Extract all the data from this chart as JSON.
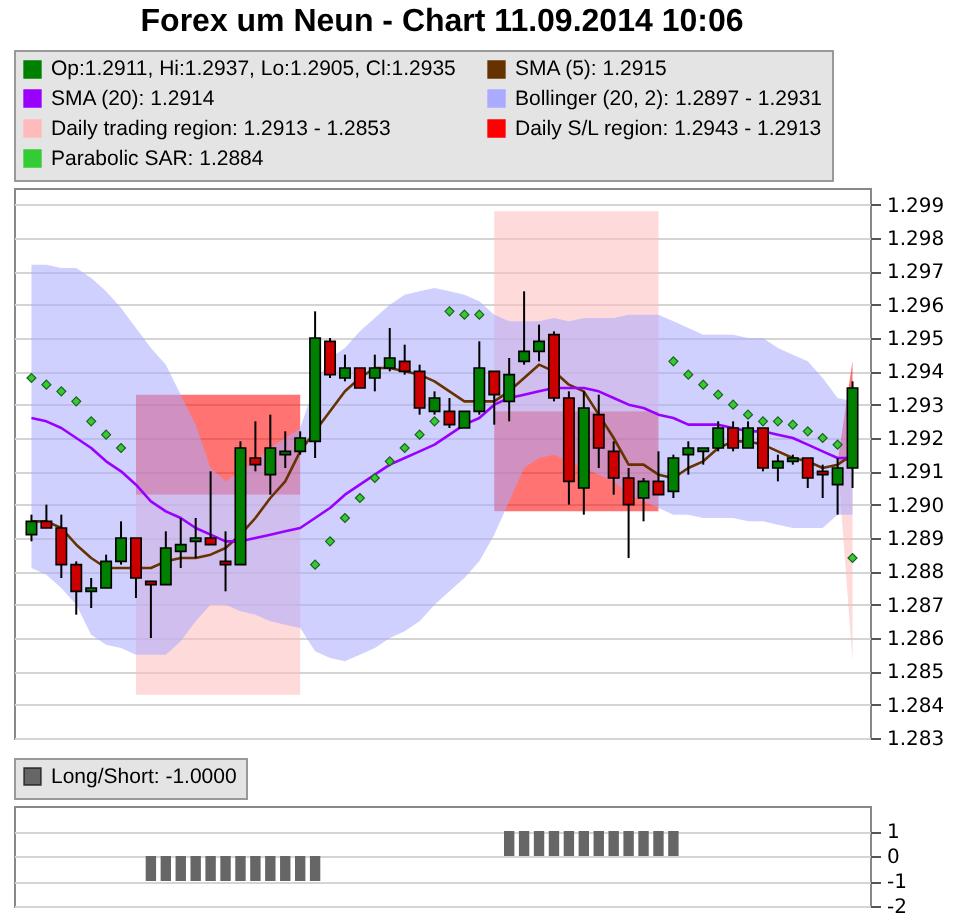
{
  "chart_data": [
    {
      "type": "candlestick",
      "title": "Forex um Neun - Chart 11.09.2014 10:06",
      "categories": [
        null,
        null,
        null,
        null,
        null,
        null,
        null,
        null,
        null,
        null,
        null,
        null,
        null,
        null,
        null,
        null,
        null,
        null,
        null,
        null,
        null,
        null,
        null,
        null,
        null,
        null,
        null,
        null,
        null,
        null,
        null,
        null,
        null,
        null,
        null,
        null,
        null,
        null,
        null,
        null,
        null,
        null,
        null,
        null,
        null,
        null,
        null,
        null,
        null,
        null,
        null,
        null,
        null,
        null,
        null,
        null
      ],
      "ylim": [
        1.283,
        1.2995
      ],
      "yticks": [
        1.283,
        1.284,
        1.285,
        1.286,
        1.287,
        1.288,
        1.289,
        {
          "value": 1.29,
          "label": "1.290"
        },
        1.291,
        1.292,
        1.293,
        1.294,
        1.295,
        1.296,
        1.297,
        1.298,
        1.299
      ],
      "grid": "y",
      "legend": "top",
      "tick_labels": "y",
      "series": [
        {
          "name": "Op:1.2911, Hi:1.2937, Lo:1.2905, Cl:1.2935",
          "color": "#008000",
          "colors": [
            "#008000",
            "#cc0000",
            "#cc0000",
            "#cc0000",
            "#008000",
            "#008000",
            "#008000",
            "#cc0000",
            "#cc0000",
            "#008000",
            "#008000",
            "#008000",
            "#cc0000",
            "#cc0000",
            "#008000",
            "#cc0000",
            "#008000",
            "#008000",
            "#008000",
            "#008000",
            "#cc0000",
            "#008000",
            "#cc0000",
            "#008000",
            "#008000",
            "#cc0000",
            "#cc0000",
            "#008000",
            "#cc0000",
            "#008000",
            "#008000",
            "#cc0000",
            "#008000",
            "#008000",
            "#008000",
            "#cc0000",
            "#cc0000",
            "#008000",
            "#cc0000",
            "#cc0000",
            "#cc0000",
            "#008000",
            "#cc0000",
            "#008000",
            "#008000",
            "#008000",
            "#008000",
            "#cc0000",
            "#008000",
            "#cc0000",
            "#008000",
            "#008000",
            "#cc0000",
            "#cc0000",
            "#008000",
            "#008000"
          ],
          "ohlc": [
            [
              1.2891,
              1.2897,
              1.2889,
              1.2895
            ],
            [
              1.2895,
              1.29,
              1.2893,
              1.2893
            ],
            [
              1.2893,
              1.2897,
              1.2878,
              1.2882
            ],
            [
              1.2882,
              1.2883,
              1.2867,
              1.2874
            ],
            [
              1.2874,
              1.2878,
              1.2869,
              1.2875
            ],
            [
              1.2875,
              1.2885,
              1.2875,
              1.2883
            ],
            [
              1.2883,
              1.2895,
              1.2882,
              1.289
            ],
            [
              1.289,
              1.289,
              1.2872,
              1.2878
            ],
            [
              1.2877,
              1.2877,
              1.286,
              1.2876
            ],
            [
              1.2876,
              1.2892,
              1.2876,
              1.2887
            ],
            [
              1.2886,
              1.2896,
              1.2881,
              1.2888
            ],
            [
              1.2889,
              1.2896,
              1.2884,
              1.289
            ],
            [
              1.289,
              1.291,
              1.2888,
              1.2888
            ],
            [
              1.2883,
              1.2892,
              1.2874,
              1.2882
            ],
            [
              1.2882,
              1.2919,
              1.2882,
              1.2917
            ],
            [
              1.2914,
              1.2925,
              1.291,
              1.2912
            ],
            [
              1.2909,
              1.2927,
              1.2903,
              1.2917
            ],
            [
              1.2915,
              1.2922,
              1.2911,
              1.2916
            ],
            [
              1.2916,
              1.2922,
              1.2915,
              1.292
            ],
            [
              1.2919,
              1.2958,
              1.2914,
              1.295
            ],
            [
              1.2949,
              1.295,
              1.2938,
              1.2939
            ],
            [
              1.2938,
              1.2945,
              1.2937,
              1.2941
            ],
            [
              1.2941,
              1.2941,
              1.2935,
              1.2935
            ],
            [
              1.2938,
              1.2945,
              1.2934,
              1.2941
            ],
            [
              1.2941,
              1.2953,
              1.294,
              1.2944
            ],
            [
              1.2943,
              1.2948,
              1.2939,
              1.294
            ],
            [
              1.294,
              1.2942,
              1.2927,
              1.2929
            ],
            [
              1.2928,
              1.2934,
              1.2927,
              1.2932
            ],
            [
              1.2928,
              1.2932,
              1.2923,
              1.2924
            ],
            [
              1.2923,
              1.2928,
              1.2923,
              1.2928
            ],
            [
              1.2928,
              1.2949,
              1.2927,
              1.2941
            ],
            [
              1.294,
              1.294,
              1.2924,
              1.2933
            ],
            [
              1.2931,
              1.2944,
              1.2925,
              1.2939
            ],
            [
              1.2943,
              1.2964,
              1.2942,
              1.2946
            ],
            [
              1.2946,
              1.2954,
              1.2943,
              1.2949
            ],
            [
              1.2951,
              1.2952,
              1.2931,
              1.2932
            ],
            [
              1.2932,
              1.2934,
              1.29,
              1.2907
            ],
            [
              1.2905,
              1.2934,
              1.2897,
              1.2929
            ],
            [
              1.2927,
              1.2933,
              1.2911,
              1.2917
            ],
            [
              1.2916,
              1.2919,
              1.2903,
              1.2908
            ],
            [
              1.2908,
              1.2911,
              1.2884,
              1.29
            ],
            [
              1.2902,
              1.2908,
              1.2895,
              1.2907
            ],
            [
              1.2907,
              1.2916,
              1.2903,
              1.2903
            ],
            [
              1.2904,
              1.2915,
              1.2902,
              1.2914
            ],
            [
              1.2915,
              1.2919,
              1.2909,
              1.2917
            ],
            [
              1.2916,
              1.2917,
              1.2912,
              1.2917
            ],
            [
              1.2917,
              1.2925,
              1.2916,
              1.2923
            ],
            [
              1.2923,
              1.2925,
              1.2916,
              1.2917
            ],
            [
              1.2917,
              1.2925,
              1.2917,
              1.2923
            ],
            [
              1.2923,
              1.2923,
              1.291,
              1.2911
            ],
            [
              1.2911,
              1.2915,
              1.2907,
              1.2913
            ],
            [
              1.2913,
              1.2915,
              1.2912,
              1.2914
            ],
            [
              1.2914,
              1.2914,
              1.2905,
              1.2908
            ],
            [
              1.291,
              1.2912,
              1.2902,
              1.2909
            ],
            [
              1.2906,
              1.2914,
              1.2897,
              1.2911
            ],
            [
              1.2911,
              1.2937,
              1.2905,
              1.2935
            ]
          ]
        },
        {
          "name": "SMA (5): 1.2915",
          "type": "line",
          "color": "#663300",
          "values": [
            1.2895,
            1.2895,
            1.2893,
            1.2888,
            1.2884,
            1.2881,
            1.2881,
            1.2881,
            1.2881,
            1.2883,
            1.2884,
            1.2884,
            1.2885,
            1.2887,
            1.2891,
            1.2896,
            1.2902,
            1.2907,
            1.2916,
            1.2922,
            1.2928,
            1.2934,
            1.2938,
            1.2941,
            1.2941,
            1.294,
            1.2939,
            1.2937,
            1.2934,
            1.2931,
            1.2931,
            1.2931,
            1.2934,
            1.2938,
            1.2942,
            1.294,
            1.2936,
            1.2934,
            1.2927,
            1.292,
            1.2912,
            1.2912,
            1.2909,
            1.2908,
            1.2911,
            1.2913,
            1.2917,
            1.2919,
            1.2919,
            1.2918,
            1.2916,
            1.2914,
            1.2913,
            1.2911,
            1.2912,
            1.2915
          ]
        },
        {
          "name": "SMA (20): 1.2914",
          "type": "line",
          "color": "#9900ff",
          "values": [
            1.2926,
            1.2925,
            1.2923,
            1.292,
            1.2917,
            1.2913,
            1.291,
            1.2906,
            1.2901,
            1.2898,
            1.2896,
            1.2893,
            1.2891,
            1.2889,
            1.2889,
            1.289,
            1.2891,
            1.2892,
            1.2893,
            1.2896,
            1.2899,
            1.2903,
            1.2906,
            1.2909,
            1.2912,
            1.2914,
            1.2916,
            1.2918,
            1.2921,
            1.2924,
            1.2926,
            1.293,
            1.2932,
            1.2933,
            1.2934,
            1.2935,
            1.2935,
            1.2935,
            1.2934,
            1.2932,
            1.293,
            1.2929,
            1.2927,
            1.2926,
            1.2924,
            1.2924,
            1.2924,
            1.2923,
            1.2922,
            1.2922,
            1.2921,
            1.292,
            1.2918,
            1.2916,
            1.2914,
            1.2914
          ]
        },
        {
          "name": "Bollinger (20, 2): 1.2897 - 1.2931",
          "type": "area",
          "color": "#aaaaff",
          "values": [
            null,
            null,
            null,
            null,
            null,
            null,
            null,
            null,
            null,
            null,
            null,
            null,
            null,
            null,
            null,
            null,
            null,
            null,
            null,
            null,
            null,
            null,
            null,
            null,
            null,
            null,
            null,
            null,
            null,
            null,
            null,
            null,
            null,
            null,
            null,
            null,
            null,
            null,
            null,
            null,
            null,
            null,
            null,
            null,
            null,
            null,
            null,
            null,
            null,
            null,
            null,
            null,
            null,
            null,
            null,
            null
          ],
          "lower": [
            1.2881,
            1.2879,
            1.2875,
            1.287,
            1.2861,
            1.2858,
            1.2857,
            1.2855,
            1.2855,
            1.2855,
            1.2859,
            1.2865,
            1.287,
            1.287,
            1.2868,
            1.2867,
            1.2865,
            1.2864,
            1.2863,
            1.2856,
            1.2854,
            1.2853,
            1.2855,
            1.2857,
            1.286,
            1.2862,
            1.2865,
            1.287,
            1.2874,
            1.2878,
            1.2883,
            1.2891,
            1.2901,
            1.2911,
            1.2914,
            1.2915,
            1.2913,
            1.2911,
            1.2909,
            1.2907,
            1.2903,
            1.2901,
            1.2899,
            1.2897,
            1.2897,
            1.2896,
            1.2896,
            1.2896,
            1.2895,
            1.2895,
            1.2894,
            1.2893,
            1.2893,
            1.2893,
            1.2897,
            1.2897
          ],
          "upper": [
            1.2972,
            1.2972,
            1.2971,
            1.2971,
            1.2968,
            1.2964,
            1.2959,
            1.2953,
            1.2947,
            1.2942,
            1.2933,
            1.2924,
            1.2911,
            1.2907,
            1.291,
            1.2913,
            1.2917,
            1.292,
            1.2923,
            1.2936,
            1.2944,
            1.2947,
            1.2952,
            1.2956,
            1.296,
            1.2963,
            1.2964,
            1.2965,
            1.2964,
            1.2963,
            1.2961,
            1.2957,
            1.2955,
            1.2955,
            1.2955,
            1.2956,
            1.2955,
            1.2956,
            1.2956,
            1.2956,
            1.2957,
            1.2957,
            1.2957,
            1.2955,
            1.2953,
            1.2951,
            1.2951,
            1.2951,
            1.295,
            1.295,
            1.2947,
            1.2945,
            1.2943,
            1.2938,
            1.2932,
            1.2931
          ]
        },
        {
          "name": "Daily trading region: 1.2913 - 1.2853",
          "type": "area",
          "color": "#ffbbbb",
          "values": [
            null,
            null,
            null,
            null,
            null,
            null,
            null,
            null,
            null,
            null,
            null,
            null,
            null,
            null,
            null,
            null,
            null,
            null,
            null,
            null,
            null,
            null,
            null,
            null,
            null,
            null,
            null,
            null,
            null,
            null,
            null,
            null,
            null,
            null,
            null,
            null,
            null,
            null,
            null,
            null,
            null,
            null,
            null,
            null,
            null,
            null,
            null,
            null,
            null,
            null,
            null,
            null,
            null,
            null,
            null,
            null
          ],
          "lower": [
            null,
            null,
            null,
            null,
            null,
            null,
            null,
            1.2843,
            1.2843,
            1.2843,
            1.2843,
            1.2843,
            1.2843,
            1.2843,
            1.2843,
            1.2843,
            1.2843,
            1.2843,
            1.2843,
            null,
            null,
            null,
            null,
            null,
            null,
            null,
            null,
            null,
            null,
            null,
            null,
            1.2928,
            1.2928,
            1.2928,
            1.2928,
            1.2928,
            1.2928,
            1.2928,
            1.2928,
            1.2928,
            1.2928,
            1.2928,
            1.2928,
            null,
            null,
            null,
            null,
            null,
            null,
            null,
            null,
            null,
            null,
            null,
            1.2913,
            1.2853
          ],
          "upper": [
            null,
            null,
            null,
            null,
            null,
            null,
            null,
            1.2903,
            1.2903,
            1.2903,
            1.2903,
            1.2903,
            1.2903,
            1.2903,
            1.2903,
            1.2903,
            1.2903,
            1.2903,
            1.2903,
            null,
            null,
            null,
            null,
            null,
            null,
            null,
            null,
            null,
            null,
            null,
            null,
            1.2988,
            1.2988,
            1.2988,
            1.2988,
            1.2988,
            1.2988,
            1.2988,
            1.2988,
            1.2988,
            1.2988,
            1.2988,
            1.2988,
            null,
            null,
            null,
            null,
            null,
            null,
            null,
            null,
            null,
            null,
            null,
            1.2913,
            1.2913
          ]
        },
        {
          "name": "Daily S/L region: 1.2943 - 1.2913",
          "type": "area",
          "color": "#ff0000",
          "values": [
            null,
            null,
            null,
            null,
            null,
            null,
            null,
            null,
            null,
            null,
            null,
            null,
            null,
            null,
            null,
            null,
            null,
            null,
            null,
            null,
            null,
            null,
            null,
            null,
            null,
            null,
            null,
            null,
            null,
            null,
            null,
            null,
            null,
            null,
            null,
            null,
            null,
            null,
            null,
            null,
            null,
            null,
            null,
            null,
            null,
            null,
            null,
            null,
            null,
            null,
            null,
            null,
            null,
            null,
            null,
            null
          ],
          "lower": [
            null,
            null,
            null,
            null,
            null,
            null,
            null,
            1.2903,
            1.2903,
            1.2903,
            1.2903,
            1.2903,
            1.2903,
            1.2903,
            1.2903,
            1.2903,
            1.2903,
            1.2903,
            1.2903,
            null,
            null,
            null,
            null,
            null,
            null,
            null,
            null,
            null,
            null,
            null,
            null,
            1.2898,
            1.2898,
            1.2898,
            1.2898,
            1.2898,
            1.2898,
            1.2898,
            1.2898,
            1.2898,
            1.2898,
            1.2898,
            1.2898,
            null,
            null,
            null,
            null,
            null,
            null,
            null,
            null,
            null,
            null,
            null,
            1.2913,
            1.2913
          ],
          "upper": [
            null,
            null,
            null,
            null,
            null,
            null,
            null,
            1.2933,
            1.2933,
            1.2933,
            1.2933,
            1.2933,
            1.2933,
            1.2933,
            1.2933,
            1.2933,
            1.2933,
            1.2933,
            1.2933,
            null,
            null,
            null,
            null,
            null,
            null,
            null,
            null,
            null,
            null,
            null,
            null,
            1.2928,
            1.2928,
            1.2928,
            1.2928,
            1.2928,
            1.2928,
            1.2928,
            1.2928,
            1.2928,
            1.2928,
            1.2928,
            1.2928,
            null,
            null,
            null,
            null,
            null,
            null,
            null,
            null,
            null,
            null,
            null,
            1.2913,
            1.2943
          ]
        },
        {
          "name": "Parabolic SAR: 1.2884",
          "type": "scatter",
          "marker": "diamond",
          "color": "#33cc33",
          "values": [
            1.2938,
            1.2936,
            1.2934,
            1.2931,
            1.2925,
            1.2921,
            1.2917,
            null,
            null,
            null,
            null,
            null,
            null,
            null,
            null,
            null,
            null,
            null,
            null,
            1.2882,
            1.2889,
            1.2896,
            1.2902,
            1.2908,
            1.2913,
            1.2917,
            1.2921,
            1.2925,
            1.2958,
            1.2957,
            1.2957,
            null,
            null,
            null,
            null,
            null,
            null,
            null,
            null,
            null,
            null,
            null,
            null,
            1.2943,
            1.2939,
            1.2936,
            1.2933,
            1.293,
            1.2927,
            1.2925,
            1.2925,
            1.2924,
            1.2922,
            1.292,
            1.2918,
            1.2884
          ]
        }
      ]
    },
    {
      "type": "bar",
      "categories": [
        null,
        null,
        null,
        null,
        null,
        null,
        null,
        null,
        null,
        null,
        null,
        null,
        null,
        null,
        null,
        null,
        null,
        null,
        null,
        null,
        null,
        null,
        null,
        null,
        null,
        null,
        null,
        null,
        null,
        null,
        null,
        null,
        null,
        null,
        null,
        null,
        null,
        null,
        null,
        null,
        null,
        null,
        null,
        null,
        null,
        null,
        null,
        null,
        null,
        null,
        null,
        null,
        null,
        null,
        null,
        null
      ],
      "ylim": [
        -2,
        2
      ],
      "yticks": [
        -2,
        -1,
        0,
        1
      ],
      "grid": "y",
      "legend": "top",
      "tick_labels": "y",
      "series": [
        {
          "name": "Long/Short: -1.0000",
          "color": "#666666",
          "values": [
            null,
            null,
            null,
            null,
            null,
            null,
            null,
            null,
            -1,
            -1,
            -1,
            -1,
            -1,
            -1,
            -1,
            -1,
            -1,
            -1,
            -1,
            -1,
            null,
            null,
            null,
            null,
            null,
            null,
            null,
            null,
            null,
            null,
            null,
            null,
            1,
            1,
            1,
            1,
            1,
            1,
            1,
            1,
            1,
            1,
            1,
            1,
            null,
            null,
            null,
            null,
            null,
            null,
            null,
            null,
            null,
            null,
            null,
            null
          ]
        }
      ]
    }
  ]
}
